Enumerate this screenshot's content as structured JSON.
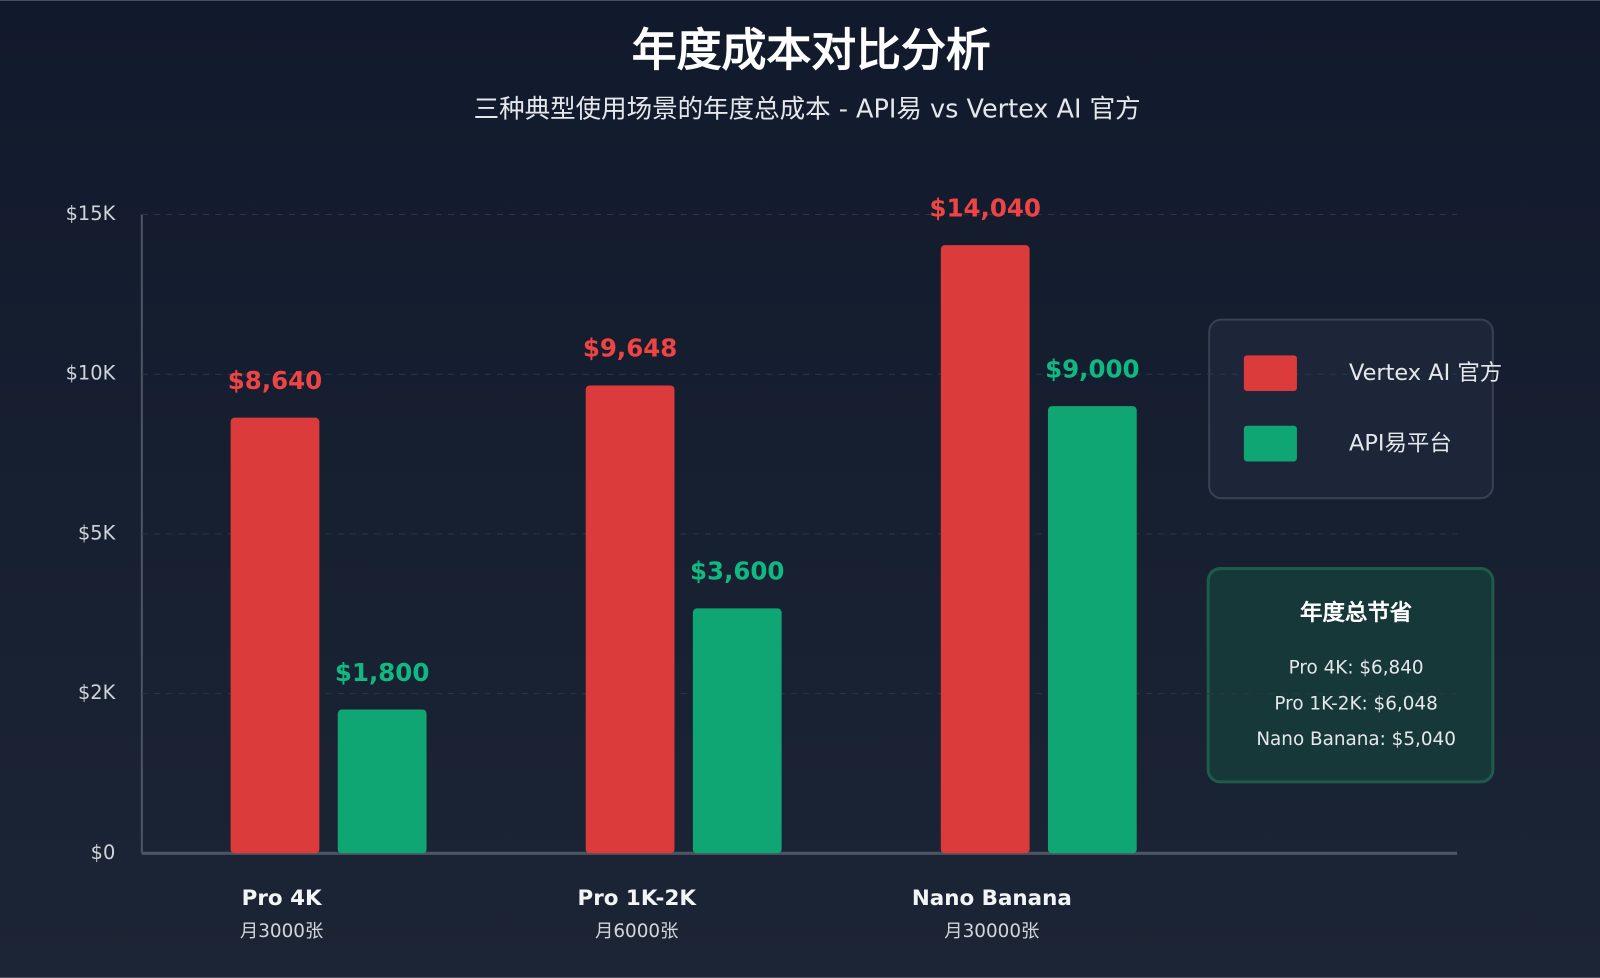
{
  "chart_data": {
    "type": "bar",
    "title": "年度成本对比分析",
    "subtitle": "三种典型使用场景的年度总成本 - API易 vs Vertex AI 官方",
    "categories": [
      "Pro 4K",
      "Pro 1K-2K",
      "Nano Banana"
    ],
    "category_sublabels": [
      "月3000张",
      "月6000张",
      "月30000张"
    ],
    "series": [
      {
        "name": "Vertex AI 官方",
        "color": "#dc3b3b",
        "label_color": "#ef4444",
        "values": [
          8640,
          9648,
          14040
        ],
        "value_labels": [
          "$8,640",
          "$9,648",
          "$14,040"
        ]
      },
      {
        "name": "API易平台",
        "color": "#10a673",
        "label_color": "#10b981",
        "values": [
          1800,
          3600,
          9000
        ],
        "value_labels": [
          "$1,800",
          "$3,600",
          "$9,000"
        ]
      }
    ],
    "ylim": [
      0,
      15000
    ],
    "yticks": [
      {
        "value": 0,
        "label": "$0"
      },
      {
        "value": 2000,
        "label": "$2K"
      },
      {
        "value": 5000,
        "label": "$5K"
      },
      {
        "value": 10000,
        "label": "$10K"
      },
      {
        "value": 15000,
        "label": "$15K"
      }
    ],
    "grid": true,
    "legend": "right",
    "savings": {
      "title": "年度总节省",
      "items": [
        "Pro 4K: $6,840",
        "Pro 1K-2K: $6,048",
        "Nano Banana: $5,040"
      ]
    }
  }
}
